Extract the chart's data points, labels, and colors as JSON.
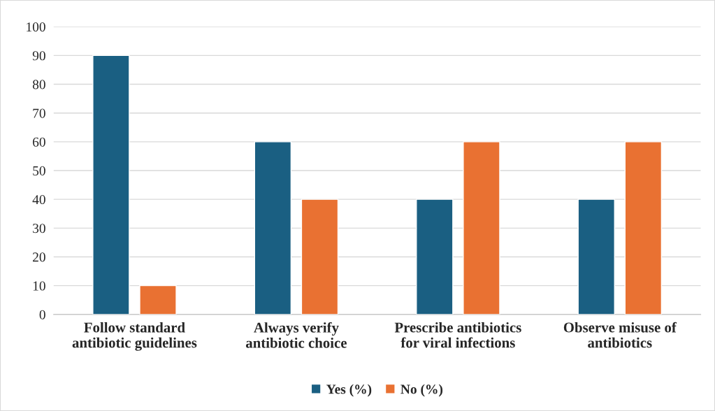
{
  "chart_data": {
    "type": "bar",
    "categories": [
      "Follow standard\nantibiotic guidelines",
      "Always verify\nantibiotic choice",
      "Prescribe antibiotics\nfor viral infections",
      "Observe misuse of\nantibiotics"
    ],
    "series": [
      {
        "name": "Yes (%)",
        "color": "#1a5f82",
        "values": [
          90,
          60,
          40,
          40
        ]
      },
      {
        "name": "No (%)",
        "color": "#e97132",
        "values": [
          10,
          40,
          60,
          60
        ]
      }
    ],
    "ylim": [
      0,
      100
    ],
    "yticks": [
      0,
      10,
      20,
      30,
      40,
      50,
      60,
      70,
      80,
      90,
      100
    ],
    "grid": "y",
    "legend": "bottom"
  }
}
